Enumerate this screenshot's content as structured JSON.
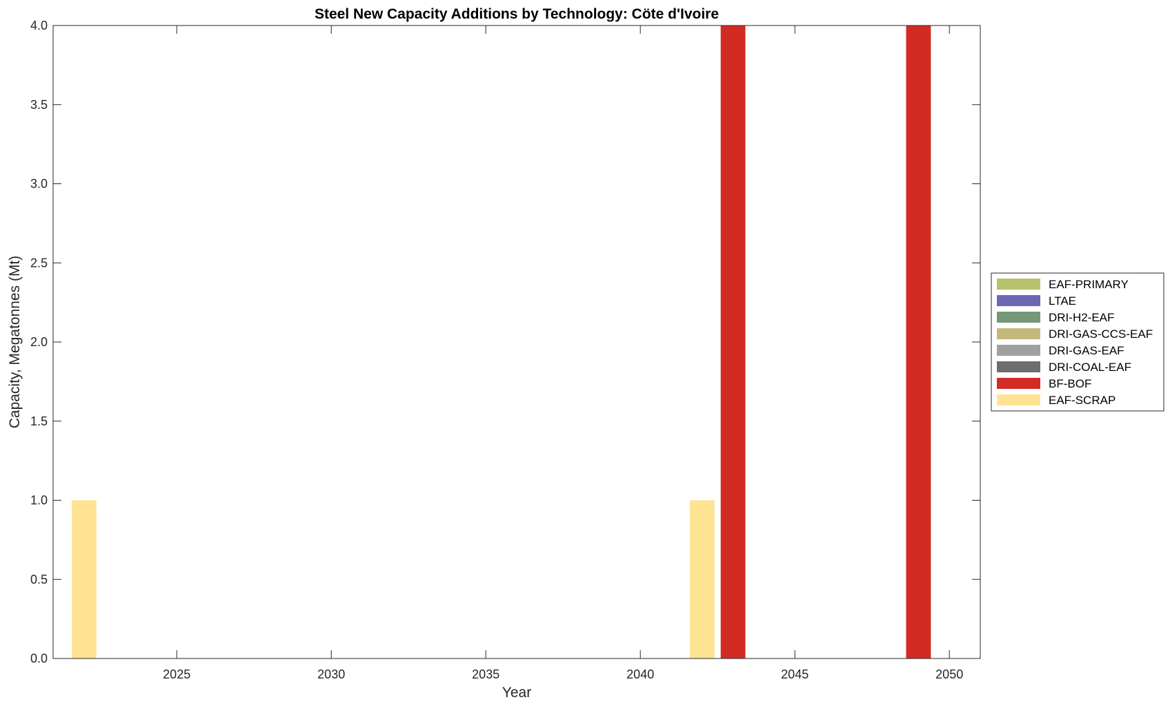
{
  "chart_data": {
    "type": "bar",
    "stacked": true,
    "title": "Steel New Capacity Additions by Technology: Cöte d'Ivoire",
    "xlabel": "Year",
    "ylabel": "Capacity, Megatonnes (Mt)",
    "xlim": [
      2021,
      2051
    ],
    "ylim": [
      0,
      4
    ],
    "xticks": [
      2025,
      2030,
      2035,
      2040,
      2045,
      2050
    ],
    "yticks": [
      "0.0",
      "0.5",
      "1.0",
      "1.5",
      "2.0",
      "2.5",
      "3.0",
      "3.5",
      "4.0"
    ],
    "grid": false,
    "legend_position": "right",
    "series": [
      {
        "name": "EAF-PRIMARY",
        "color": "#b8c26a",
        "points": []
      },
      {
        "name": "LTAE",
        "color": "#6e67b3",
        "points": []
      },
      {
        "name": "DRI-H2-EAF",
        "color": "#76977a",
        "points": []
      },
      {
        "name": "DRI-GAS-CCS-EAF",
        "color": "#c3b97b",
        "points": []
      },
      {
        "name": "DRI-GAS-EAF",
        "color": "#a0a0a0",
        "points": []
      },
      {
        "name": "DRI-COAL-EAF",
        "color": "#6e6e6e",
        "points": []
      },
      {
        "name": "BF-BOF",
        "color": "#d22b23",
        "points": [
          {
            "x": 2043,
            "y": 4.0
          },
          {
            "x": 2049,
            "y": 4.0
          }
        ]
      },
      {
        "name": "EAF-SCRAP",
        "color": "#fee393",
        "points": [
          {
            "x": 2022,
            "y": 1.0
          },
          {
            "x": 2042,
            "y": 1.0
          }
        ]
      }
    ]
  }
}
